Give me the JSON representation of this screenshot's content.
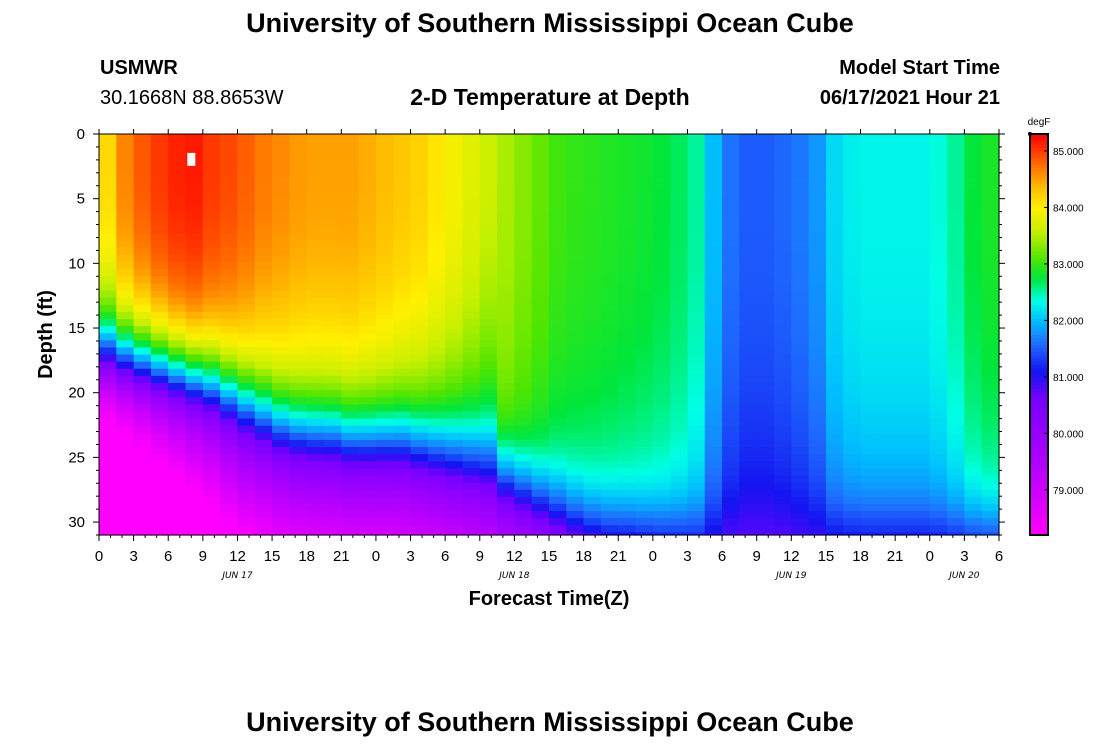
{
  "header": {
    "title": "University of Southern Mississippi Ocean Cube",
    "station": "USMWR",
    "coords": "30.1668N  88.8653W",
    "chart_heading": "2-D Temperature at Depth",
    "model_label": "Model Start Time",
    "model_time": "06/17/2021 Hour 21"
  },
  "footer": {
    "title": "University of Southern Mississippi Ocean Cube"
  },
  "chart_data": {
    "type": "heatmap",
    "title": "2-D Temperature at Depth",
    "xlabel": "Forecast Time(Z)",
    "ylabel": "Depth (ft)",
    "x_ticks": [
      "0",
      "3",
      "6",
      "9",
      "12",
      "15",
      "18",
      "21",
      "0",
      "3",
      "6",
      "9",
      "12",
      "15",
      "18",
      "21",
      "0",
      "3",
      "6",
      "9",
      "12",
      "15",
      "18",
      "21",
      "0",
      "3",
      "6"
    ],
    "x_tick_hours": [
      0,
      3,
      6,
      9,
      12,
      15,
      18,
      21,
      24,
      27,
      30,
      33,
      36,
      39,
      42,
      45,
      48,
      51,
      54,
      57,
      60,
      63,
      66,
      69,
      72,
      75,
      78
    ],
    "date_labels": [
      {
        "text": "JUN 17",
        "hour": 12
      },
      {
        "text": "JUN 18",
        "hour": 36
      },
      {
        "text": "JUN 19",
        "hour": 60
      },
      {
        "text": "JUN 20",
        "hour": 75
      }
    ],
    "y_ticks": [
      "0",
      "5",
      "10",
      "15",
      "20",
      "25",
      "30"
    ],
    "y_tick_values": [
      0,
      5,
      10,
      15,
      20,
      25,
      30
    ],
    "xlim": [
      0,
      78
    ],
    "ylim": [
      0,
      31
    ],
    "colorbar": {
      "unit": "degF",
      "min": 78.2,
      "max": 85.3,
      "labels": [
        "85.000",
        "84.000",
        "83.000",
        "82.000",
        "81.000",
        "80.000",
        "79.000"
      ],
      "label_values": [
        85,
        84,
        83,
        82,
        81,
        80,
        79
      ]
    },
    "time_hours": [
      0,
      2,
      4,
      6,
      8,
      10,
      12,
      14,
      16,
      18,
      20,
      22,
      24,
      26,
      28,
      30,
      32,
      34,
      36,
      38,
      40,
      42,
      44,
      46,
      48,
      50,
      52,
      54,
      56,
      58,
      60,
      62,
      64,
      66,
      68,
      70,
      72,
      74,
      76,
      78
    ],
    "surface_temp": [
      83.9,
      84.6,
      84.9,
      85.1,
      85.2,
      85.0,
      84.9,
      84.7,
      84.6,
      84.5,
      84.5,
      84.5,
      84.4,
      84.3,
      84.2,
      84.0,
      83.8,
      83.6,
      83.4,
      83.2,
      83.0,
      82.95,
      82.9,
      82.85,
      82.8,
      82.7,
      82.5,
      81.7,
      81.5,
      81.5,
      81.6,
      81.75,
      82.2,
      82.3,
      82.3,
      82.3,
      82.3,
      82.5,
      82.8,
      82.9
    ],
    "thermocline_depth_ft": [
      17,
      17.5,
      18,
      18.5,
      19,
      19.5,
      20.5,
      21.5,
      22.5,
      23,
      23,
      23.5,
      23.5,
      23.5,
      24,
      24.5,
      25,
      25.5,
      26.5,
      27.5,
      28.5,
      29.5,
      30,
      30.2,
      30.5,
      30.7,
      31,
      31,
      31,
      31,
      31,
      31,
      31,
      31,
      31,
      31,
      31,
      31,
      31,
      31
    ],
    "bottom_temp_range": [
      78.3,
      80.6
    ],
    "peak_marker": {
      "hour": 8,
      "depth_ft": 2
    }
  }
}
